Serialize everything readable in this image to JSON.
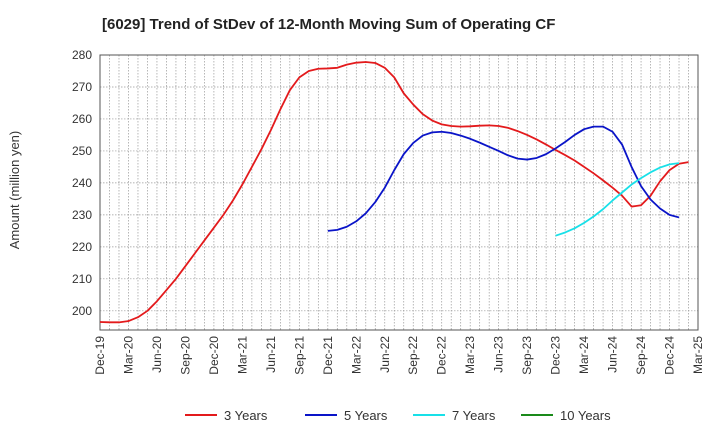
{
  "chart_data": {
    "type": "line",
    "title": "[6029]  Trend of StDev of 12-Month Moving Sum of Operating CF",
    "xlabel": "",
    "ylabel": "Amount (million yen)",
    "ylim": [
      194,
      280
    ],
    "yticks": [
      200,
      210,
      220,
      230,
      240,
      250,
      260,
      270,
      280
    ],
    "x_tick_labels": [
      "Dec-19",
      "Mar-20",
      "Jun-20",
      "Sep-20",
      "Dec-20",
      "Mar-21",
      "Jun-21",
      "Sep-21",
      "Dec-21",
      "Mar-22",
      "Jun-22",
      "Sep-22",
      "Dec-22",
      "Mar-23",
      "Jun-23",
      "Sep-23",
      "Dec-23",
      "Mar-24",
      "Jun-24",
      "Sep-24",
      "Dec-24",
      "Mar-25"
    ],
    "x_tick_index": [
      0,
      3,
      6,
      9,
      12,
      15,
      18,
      21,
      24,
      27,
      30,
      33,
      36,
      39,
      42,
      45,
      48,
      51,
      54,
      57,
      60,
      63
    ],
    "x_range": [
      0,
      63
    ],
    "grid": true,
    "legend_position": "bottom",
    "series": [
      {
        "name": "3 Years",
        "color": "#e31a1c",
        "start": 0,
        "values": [
          196.5,
          196.4,
          196.4,
          196.8,
          198,
          200,
          203,
          206.5,
          210,
          214,
          218,
          222,
          226,
          230,
          234.5,
          239.5,
          245,
          250.5,
          256.5,
          263,
          269,
          273,
          275,
          275.7,
          275.8,
          276,
          277,
          277.6,
          277.8,
          277.5,
          276,
          273,
          268,
          264.5,
          261.5,
          259.5,
          258.3,
          257.8,
          257.6,
          257.7,
          257.9,
          258,
          257.8,
          257.2,
          256.2,
          255,
          253.6,
          252,
          250.3,
          248.7,
          247,
          245,
          243,
          240.8,
          238.5,
          236,
          232.6,
          233,
          236,
          240.5,
          244,
          246,
          246.5
        ]
      },
      {
        "name": "5 Years",
        "color": "#0a14c8",
        "start": 24,
        "values": [
          225,
          225.3,
          226.3,
          228,
          230.5,
          234,
          238.5,
          244,
          249,
          252.5,
          254.8,
          255.8,
          256,
          255.6,
          254.8,
          253.8,
          252.6,
          251.3,
          250,
          248.6,
          247.6,
          247.3,
          247.8,
          249,
          250.8,
          252.8,
          255,
          256.8,
          257.6,
          257.6,
          256,
          252,
          245,
          239,
          234.8,
          232,
          230,
          229.2
        ]
      },
      {
        "name": "7 Years",
        "color": "#18e0e8",
        "start": 48,
        "values": [
          223.5,
          224.5,
          225.8,
          227.5,
          229.5,
          231.8,
          234.5,
          237,
          239.5,
          241.5,
          243.3,
          244.8,
          245.8,
          246.2
        ]
      },
      {
        "name": "10 Years",
        "color": "#1a8a1a",
        "start": 61,
        "values": []
      }
    ]
  }
}
